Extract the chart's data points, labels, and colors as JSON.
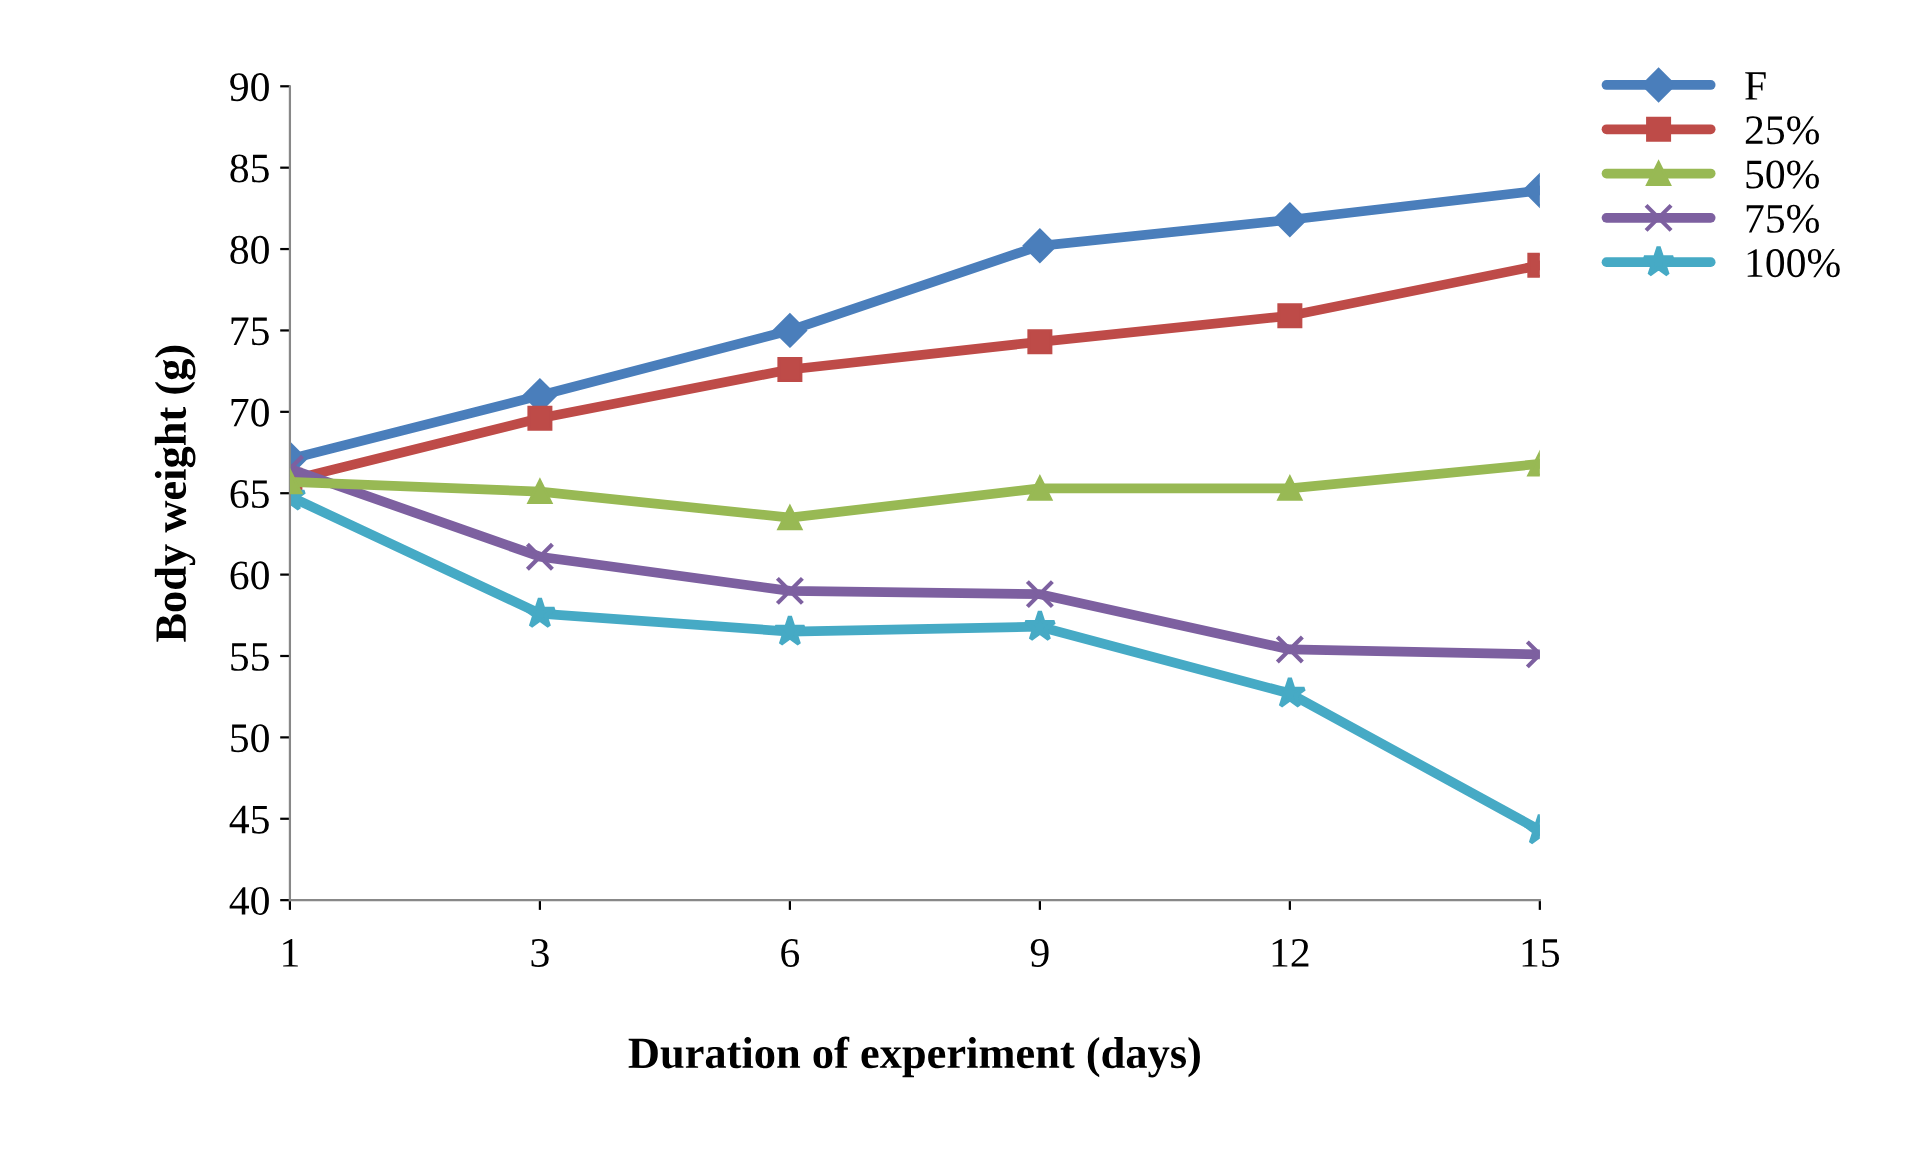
{
  "chart_data": {
    "type": "line",
    "xlabel": "Duration of experiment (days)",
    "ylabel": "Body weight (g)",
    "categories": [
      "1",
      "3",
      "6",
      "9",
      "12",
      "15"
    ],
    "ylim": [
      40,
      90
    ],
    "yticks": [
      40,
      45,
      50,
      55,
      60,
      65,
      70,
      75,
      80,
      85,
      90
    ],
    "grid": false,
    "legend": "top right",
    "line_style": "solid",
    "series": [
      {
        "name": "F",
        "color": "#4a7ebb",
        "marker": "diamond",
        "values": [
          67.1,
          71,
          75,
          80.2,
          81.8,
          83.6
        ]
      },
      {
        "name": "25%",
        "color": "#be4b48",
        "marker": "square",
        "values": [
          65.8,
          69.6,
          72.6,
          74.3,
          75.9,
          79
        ]
      },
      {
        "name": "50%",
        "color": "#98b954",
        "marker": "triangle",
        "values": [
          65.7,
          65.1,
          63.5,
          65.3,
          65.3,
          66.8
        ]
      },
      {
        "name": "75%",
        "color": "#7d60a0",
        "marker": "cross",
        "values": [
          66.5,
          61.1,
          59,
          58.8,
          55.4,
          55.1
        ]
      },
      {
        "name": "100%",
        "color": "#46aac5",
        "marker": "star",
        "values": [
          64.8,
          57.6,
          56.5,
          56.8,
          52.7,
          44.3
        ]
      }
    ]
  }
}
